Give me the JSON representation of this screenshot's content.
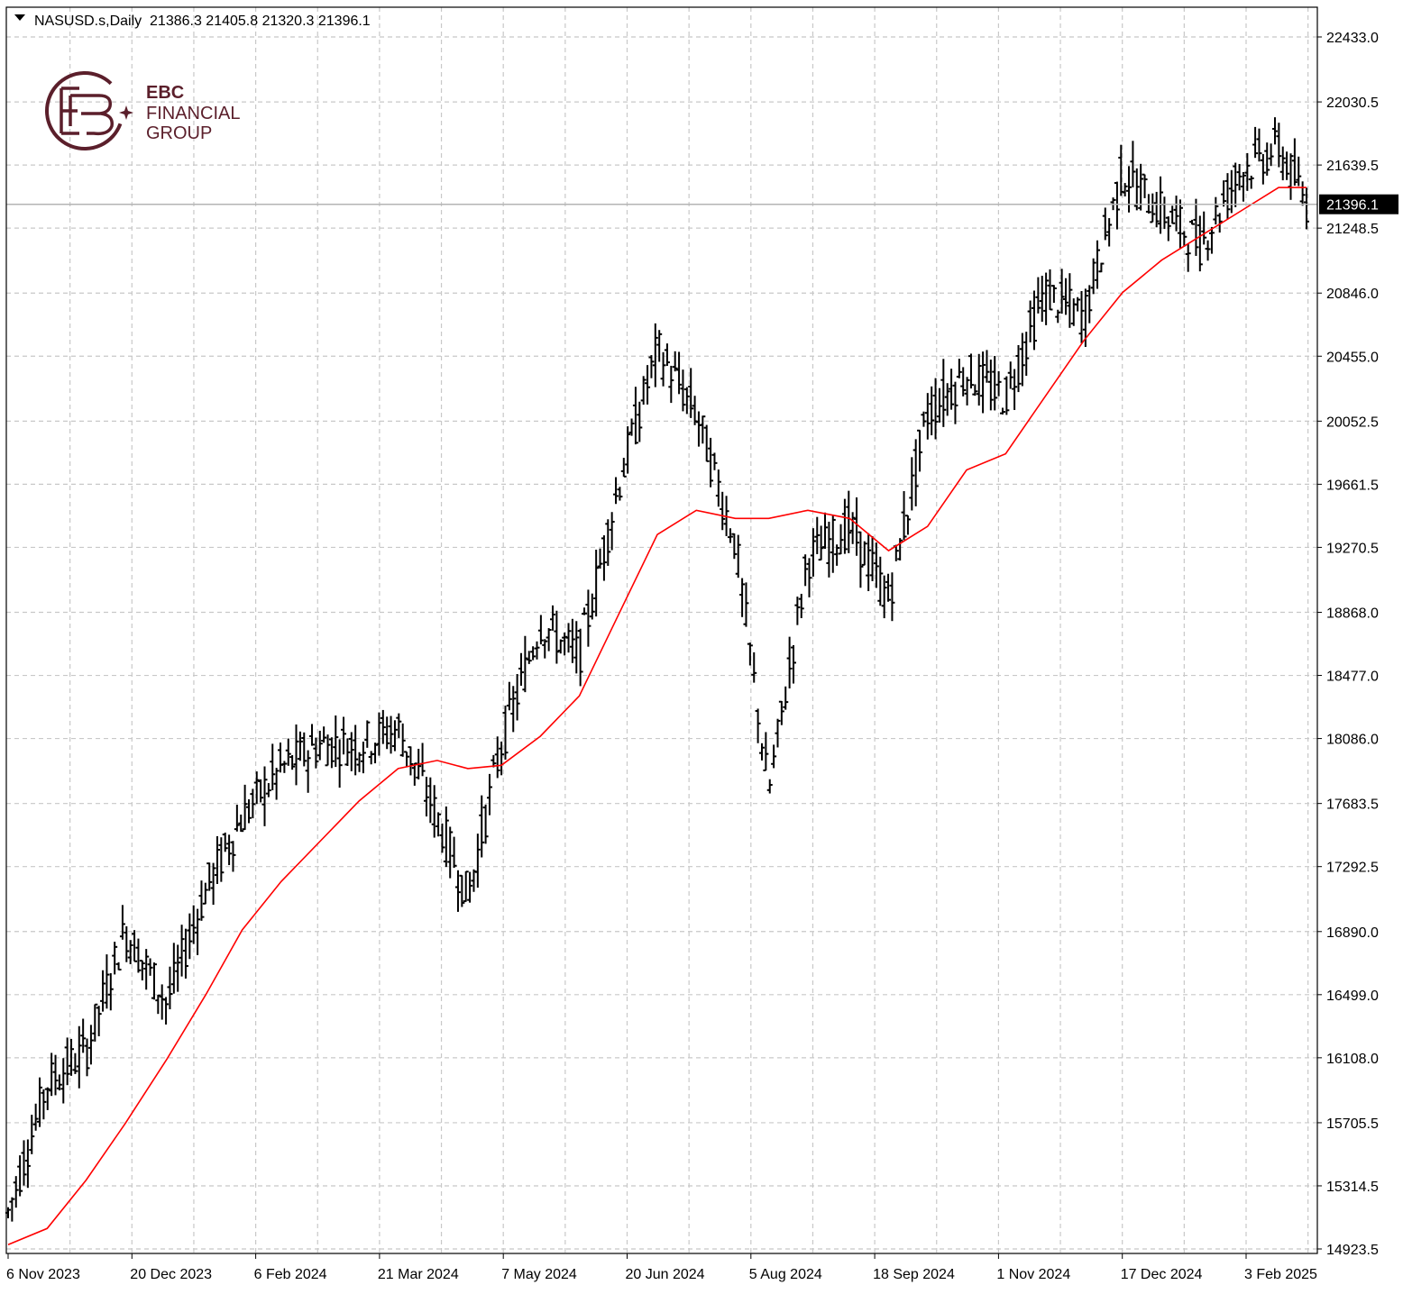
{
  "header": {
    "symbol_line": "NASUSD.s,Daily  21386.3 21405.8 21320.3 21396.1"
  },
  "logo": {
    "line1": "EBC",
    "line2": "FINANCIAL",
    "line3": "GROUP",
    "color": "#5b1f2b"
  },
  "chart_data": {
    "type": "line",
    "title": "NASUSD.s,Daily",
    "ohlc_last": {
      "open": 21386.3,
      "high": 21405.8,
      "low": 21320.3,
      "close": 21396.1
    },
    "current_price_label": "21396.1",
    "y_ticks": [
      "22433.0",
      "22030.5",
      "21639.5",
      "21248.5",
      "20846.0",
      "20455.0",
      "20052.5",
      "19661.5",
      "19270.5",
      "18868.0",
      "18477.0",
      "18086.0",
      "17683.5",
      "17292.5",
      "16890.0",
      "16499.0",
      "16108.0",
      "15705.5",
      "15314.5",
      "14923.5"
    ],
    "x_ticks": [
      "6 Nov 2023",
      "20 Dec 2023",
      "6 Feb 2024",
      "21 Mar 2024",
      "7 May 2024",
      "20 Jun 2024",
      "5 Aug 2024",
      "18 Sep 2024",
      "1 Nov 2024",
      "17 Dec 2024",
      "3 Feb 2025"
    ],
    "ylim": [
      14923.5,
      22433.0
    ],
    "grid": true,
    "series": [
      {
        "color": "#000000",
        "kind": "price-bars",
        "x": [
          "2023-11-06",
          "2023-11-20",
          "2023-12-04",
          "2023-12-18",
          "2024-01-02",
          "2024-01-16",
          "2024-01-29",
          "2024-02-12",
          "2024-02-26",
          "2024-03-11",
          "2024-03-25",
          "2024-04-08",
          "2024-04-19",
          "2024-05-01",
          "2024-05-15",
          "2024-05-29",
          "2024-06-12",
          "2024-06-26",
          "2024-07-10",
          "2024-07-24",
          "2024-08-05",
          "2024-08-19",
          "2024-09-03",
          "2024-09-17",
          "2024-10-01",
          "2024-10-15",
          "2024-10-29",
          "2024-11-12",
          "2024-11-26",
          "2024-12-10",
          "2024-12-24",
          "2025-01-07",
          "2025-01-21",
          "2025-02-04",
          "2025-02-14"
        ],
        "y": [
          15150,
          15950,
          16150,
          16900,
          16450,
          17150,
          17600,
          17900,
          18050,
          18050,
          18150,
          17600,
          17100,
          18050,
          18800,
          18600,
          19650,
          20500,
          20100,
          19300,
          17750,
          19200,
          19400,
          18950,
          20100,
          20350,
          20200,
          20850,
          20700,
          21600,
          21350,
          21150,
          21600,
          21750,
          21396.1
        ]
      },
      {
        "color": "#ff0000",
        "kind": "moving-average",
        "x": [
          "2023-11-06",
          "2023-11-20",
          "2023-12-04",
          "2023-12-18",
          "2024-01-02",
          "2024-01-16",
          "2024-01-29",
          "2024-02-12",
          "2024-02-26",
          "2024-03-11",
          "2024-03-25",
          "2024-04-08",
          "2024-04-19",
          "2024-05-01",
          "2024-05-15",
          "2024-05-29",
          "2024-06-12",
          "2024-06-26",
          "2024-07-10",
          "2024-07-24",
          "2024-08-05",
          "2024-08-19",
          "2024-09-03",
          "2024-09-17",
          "2024-10-01",
          "2024-10-15",
          "2024-10-29",
          "2024-11-12",
          "2024-11-26",
          "2024-12-10",
          "2024-12-24",
          "2025-01-07",
          "2025-01-21",
          "2025-02-04",
          "2025-02-14"
        ],
        "y": [
          14950,
          15050,
          15350,
          15700,
          16100,
          16500,
          16900,
          17200,
          17450,
          17700,
          17900,
          17950,
          17900,
          17920,
          18100,
          18350,
          18850,
          19350,
          19500,
          19450,
          19450,
          19500,
          19450,
          19250,
          19400,
          19750,
          19850,
          20200,
          20550,
          20850,
          21050,
          21200,
          21350,
          21500,
          21500
        ]
      }
    ]
  }
}
